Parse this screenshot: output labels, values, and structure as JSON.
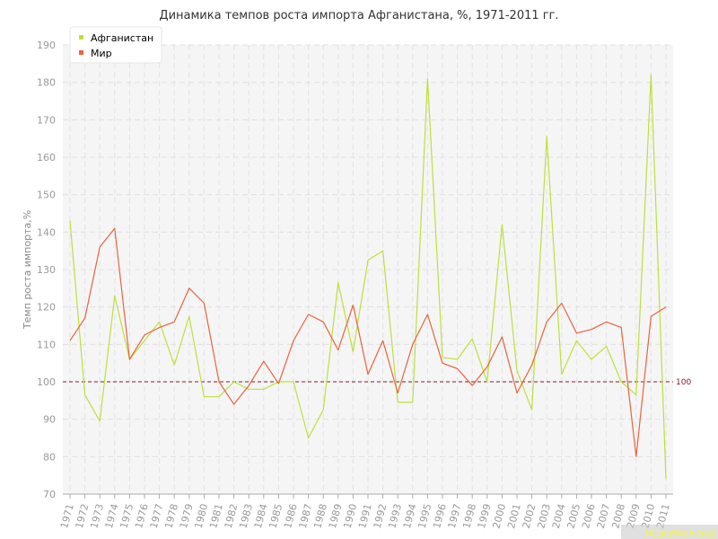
{
  "chart_data": {
    "type": "line",
    "title": "Динамика темпов роста импорта Афганистана, %, 1971-2011 гг.",
    "ylabel": "Темп роста импорта,%",
    "xlabel": "",
    "ylim": [
      70,
      190
    ],
    "yticks": [
      70,
      80,
      90,
      100,
      110,
      120,
      130,
      140,
      150,
      160,
      170,
      180,
      190
    ],
    "grid": true,
    "legend_position": "top-left",
    "reference_line": {
      "value": 100,
      "label": "100",
      "color": "#8b1a2b"
    },
    "x": [
      "1971",
      "1972",
      "1973",
      "1974",
      "1975",
      "1976",
      "1977",
      "1978",
      "1979",
      "1980",
      "1981",
      "1982",
      "1983",
      "1984",
      "1985",
      "1986",
      "1987",
      "1988",
      "1989",
      "1990",
      "1991",
      "1992",
      "1993",
      "1994",
      "1995",
      "1996",
      "1997",
      "1998",
      "1999",
      "2000",
      "2001",
      "2002",
      "2003",
      "2004",
      "2005",
      "2006",
      "2007",
      "2008",
      "2009",
      "2010",
      "2011"
    ],
    "series": [
      {
        "name": "Афганистан",
        "color": "#bde03c",
        "values": [
          143,
          96.5,
          89.5,
          123,
          106,
          111,
          116,
          104.5,
          117.5,
          96,
          96,
          100,
          98,
          98,
          100,
          100,
          85,
          92.5,
          126.5,
          108,
          132.5,
          135,
          94.5,
          94.5,
          181,
          106.5,
          106,
          111.5,
          100,
          142,
          103,
          92.5,
          165.5,
          102,
          111,
          106,
          109.5,
          100,
          96.5,
          182,
          74
        ]
      },
      {
        "name": "Мир",
        "color": "#e8643c",
        "values": [
          111,
          117,
          136,
          141,
          106,
          112.5,
          114.5,
          116,
          125,
          121,
          100,
          94,
          99,
          105.5,
          99.5,
          111,
          118,
          116,
          108.5,
          120.5,
          102,
          111,
          97,
          110,
          118,
          105,
          103.5,
          99,
          104,
          112,
          97,
          104.5,
          116,
          121,
          113,
          114,
          116,
          114.5,
          80,
          117.5,
          120
        ]
      }
    ]
  },
  "watermark": "http://be5.biz/"
}
